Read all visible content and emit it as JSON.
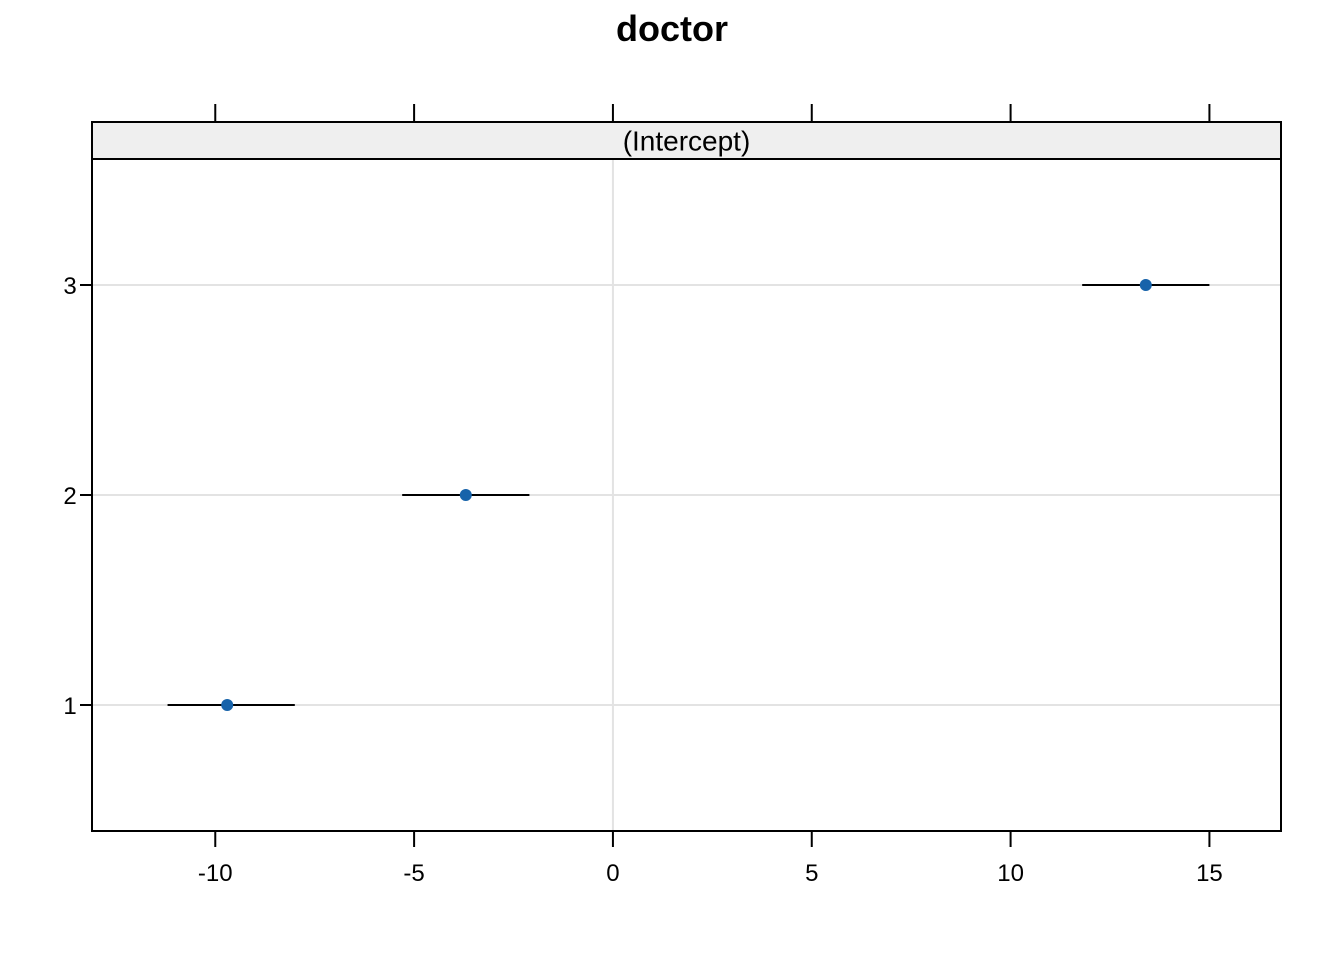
{
  "chart_data": {
    "type": "scatter",
    "title": "doctor",
    "panel_label": "(Intercept)",
    "xlabel": "",
    "ylabel": "",
    "xlim": [
      -13.1,
      16.8
    ],
    "ylim": [
      0.4,
      3.6
    ],
    "x_ticks": [
      -10,
      -5,
      0,
      5,
      10,
      15
    ],
    "x_tick_labels": [
      "-10",
      "-5",
      "0",
      "5",
      "10",
      "15"
    ],
    "y_ticks": [
      1,
      2,
      3
    ],
    "y_tick_labels": [
      "1",
      "2",
      "3"
    ],
    "grid": true,
    "point_color": "#1763aa",
    "points": [
      {
        "group": "1",
        "estimate": -9.7,
        "lower": -11.2,
        "upper": -8.0
      },
      {
        "group": "2",
        "estimate": -3.7,
        "lower": -5.3,
        "upper": -2.1
      },
      {
        "group": "3",
        "estimate": 13.4,
        "lower": 11.8,
        "upper": 15.0
      }
    ]
  }
}
